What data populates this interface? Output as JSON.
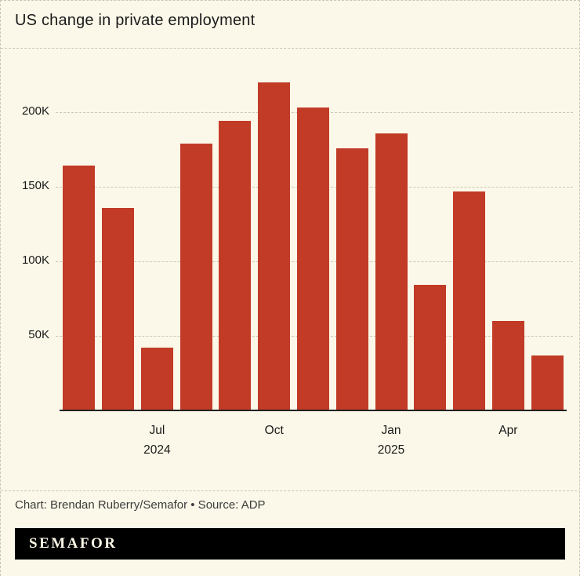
{
  "title": "US change in private employment",
  "credit": "Chart: Brendan Ruberry/Semafor • Source: ADP",
  "logo_text": "SEMAFOR",
  "colors": {
    "background": "#FBF8E9",
    "bar": "#C13B27",
    "grid": "#CBC6B2",
    "axis": "#222222",
    "text": "#1A1A1A",
    "muted": "#3C3C3C",
    "logo_bg": "#000000",
    "logo_text": "#FCF6E6"
  },
  "chart_data": {
    "type": "bar",
    "title": "US change in private employment",
    "unit": "thousands of jobs (K)",
    "x": [
      "May 2024",
      "Jun 2024",
      "Jul 2024",
      "Aug 2024",
      "Sep 2024",
      "Oct 2024",
      "Nov 2024",
      "Dec 2024",
      "Jan 2025",
      "Feb 2025",
      "Mar 2025",
      "Apr 2025",
      "May 2025"
    ],
    "values": [
      164,
      136,
      42,
      179,
      194,
      220,
      203,
      176,
      186,
      84,
      147,
      60,
      37
    ],
    "xlabel": "",
    "ylabel": "",
    "ylim": [
      0,
      230
    ],
    "yticks": [
      {
        "value": 50,
        "label": "50K"
      },
      {
        "value": 100,
        "label": "100K"
      },
      {
        "value": 150,
        "label": "150K"
      },
      {
        "value": 200,
        "label": "200K"
      }
    ],
    "xticks": [
      {
        "index": 2,
        "label": "Jul",
        "year": "2024"
      },
      {
        "index": 5,
        "label": "Oct",
        "year": ""
      },
      {
        "index": 8,
        "label": "Jan",
        "year": "2025"
      },
      {
        "index": 11,
        "label": "Apr",
        "year": ""
      }
    ],
    "grid": true,
    "legend": false,
    "bar_color": "#C13B27",
    "source": "ADP"
  }
}
